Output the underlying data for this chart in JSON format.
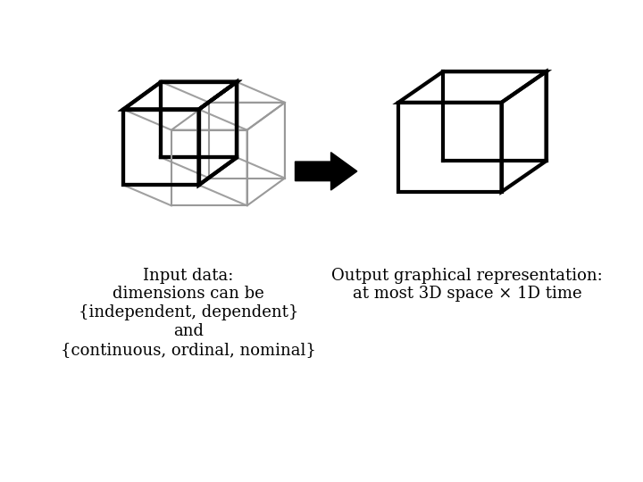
{
  "background_color": "#ffffff",
  "left_text": "Input data:\ndimensions can be\n{independent, dependent}\nand\n{continuous, ordinal, nominal}",
  "right_text": "Output graphical representation:\nat most 3D space × 1D time",
  "font_size": 13,
  "text_color": "#000000",
  "inner_cube_color": "#000000",
  "outer_cube_color": "#999999",
  "connect_color": "#888888",
  "cube_lw": 3.0,
  "outer_lw": 1.5
}
